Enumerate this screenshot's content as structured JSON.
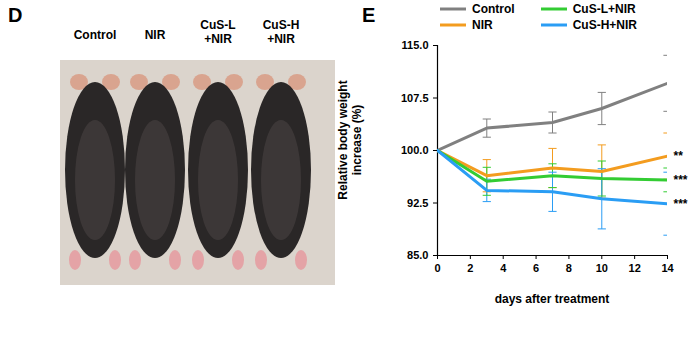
{
  "photo_panel": {
    "label": "D",
    "captions": [
      "Control",
      "NIR",
      "CuS-L +NIR",
      "CuS-H +NIR"
    ]
  },
  "chart_data": {
    "type": "line",
    "panel_label": "E",
    "xlabel": "days after treatment",
    "ylabel": "Relative body weight increase (%)",
    "x": [
      0,
      3,
      7,
      10,
      14
    ],
    "series": [
      {
        "name": "Control",
        "color": "#808080",
        "values": [
          100,
          103.2,
          104.0,
          106.0,
          109.6
        ],
        "errors": [
          0,
          1.3,
          1.5,
          2.3,
          4.0
        ]
      },
      {
        "name": "NIR",
        "color": "#f39c1f",
        "values": [
          100,
          96.4,
          97.5,
          97.0,
          99.2
        ],
        "errors": [
          0,
          2.3,
          2.8,
          3.8,
          3.3
        ],
        "annotation": "**"
      },
      {
        "name": "CuS-L+NIR",
        "color": "#33cc33",
        "values": [
          100,
          95.6,
          96.4,
          96.0,
          95.8
        ],
        "errors": [
          0,
          2.0,
          1.7,
          2.5,
          1.7
        ],
        "annotation": "***"
      },
      {
        "name": "CuS-H+NIR",
        "color": "#2a9df4",
        "values": [
          100,
          94.3,
          94.1,
          93.1,
          92.4
        ],
        "errors": [
          0,
          1.6,
          2.8,
          4.3,
          4.5
        ],
        "annotation": "***"
      }
    ],
    "xlim": [
      0,
      14
    ],
    "xticks": [
      0,
      2,
      4,
      6,
      8,
      10,
      12,
      14
    ],
    "ylim": [
      85,
      115
    ],
    "yticks": [
      {
        "value": 85,
        "label": "85.0"
      },
      {
        "value": 92.5,
        "label": "92.5"
      },
      {
        "value": 100,
        "label": "100.0"
      },
      {
        "value": 107.5,
        "label": "107.5"
      },
      {
        "value": 115,
        "label": "115.0"
      }
    ],
    "legend": "top",
    "grid": false,
    "marker": "none",
    "line_style": "solid"
  }
}
